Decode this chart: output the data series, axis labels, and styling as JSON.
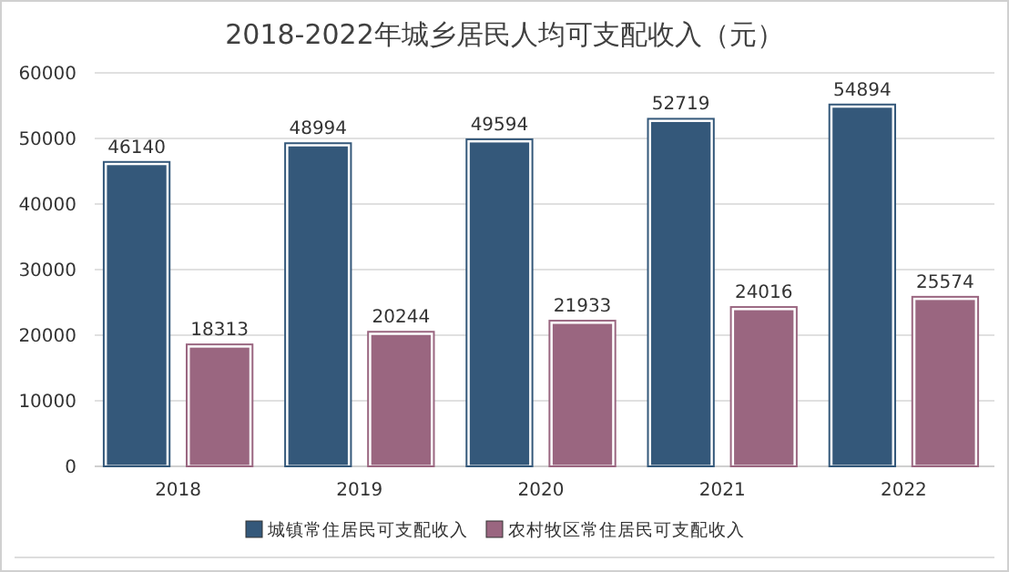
{
  "chart_data": {
    "type": "bar",
    "title": "2018-2022年城乡居民人均可支配收入（元）",
    "categories": [
      "2018",
      "2019",
      "2020",
      "2021",
      "2022"
    ],
    "series": [
      {
        "name": "城镇常住居民可支配收入",
        "color": "#34587a",
        "values": [
          46140,
          48994,
          49594,
          52719,
          54894
        ]
      },
      {
        "name": "农村牧区常住居民可支配收入",
        "color": "#9a6680",
        "values": [
          18313,
          20244,
          21933,
          24016,
          25574
        ]
      }
    ],
    "ylim": [
      0,
      60000
    ],
    "yticks": [
      0,
      10000,
      20000,
      30000,
      40000,
      50000,
      60000
    ],
    "grid": "y",
    "legend": "bottom",
    "data_labels": true
  }
}
